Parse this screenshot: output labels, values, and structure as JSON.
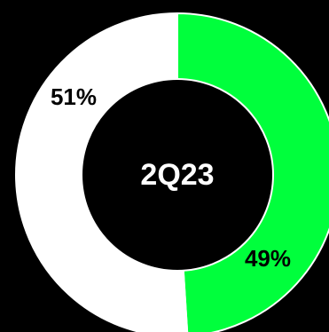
{
  "chart_data": {
    "type": "pie",
    "variant": "donut",
    "center_label": "2Q23",
    "slices": [
      {
        "label": "49%",
        "value": 49,
        "color": "#00ff3c"
      },
      {
        "label": "51%",
        "value": 51,
        "color": "#ffffff"
      }
    ],
    "background": "#000000"
  }
}
